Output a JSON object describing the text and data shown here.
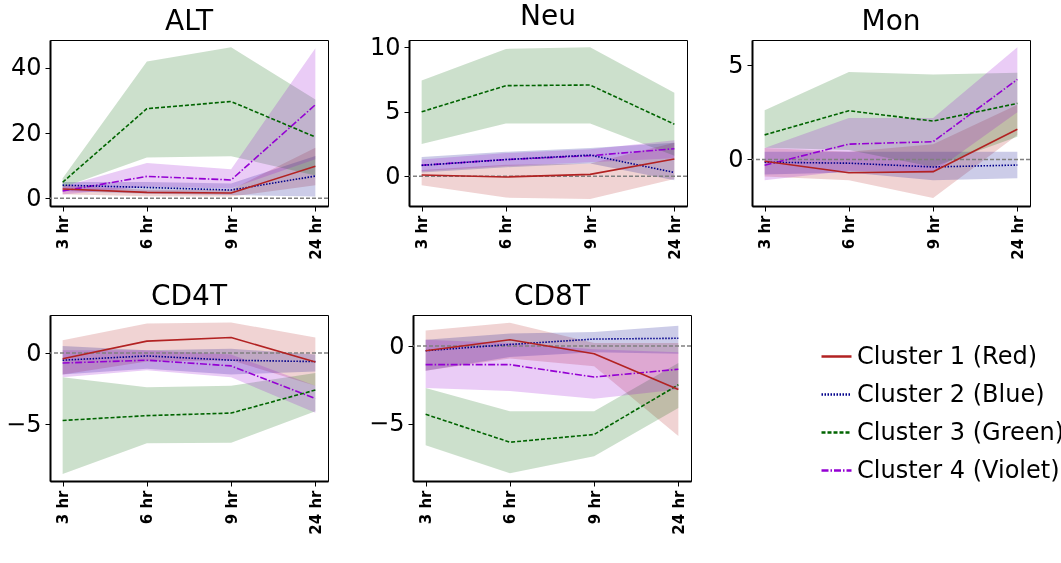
{
  "chart_data": [
    {
      "type": "line",
      "title": "ALT",
      "categories": [
        "3 hr",
        "6 hr",
        "9 hr",
        "24 hr"
      ],
      "ylim": [
        -2.4,
        48.6
      ],
      "yticks": [
        0,
        20,
        40
      ],
      "grid": false,
      "legend": "right",
      "ref_lines": [
        {
          "axis": "y",
          "value": 0,
          "color": "#808080",
          "line_style": "dashed"
        }
      ],
      "series": [
        {
          "name": "Cluster 1 (Red)",
          "color": "#b22222",
          "line_style": "solid",
          "values": [
            2.8,
            1.8,
            1.6,
            9.8
          ],
          "lower": [
            1.2,
            0.6,
            0.5,
            4.0
          ],
          "upper": [
            4.0,
            2.6,
            2.6,
            15.5
          ]
        },
        {
          "name": "Cluster 2 (Blue)",
          "color": "#00008b",
          "line_style": "dotted",
          "values": [
            4.0,
            3.3,
            2.5,
            6.8
          ],
          "lower": [
            2.2,
            1.4,
            1.0,
            0.5
          ],
          "upper": [
            5.0,
            5.0,
            4.5,
            13.0
          ]
        },
        {
          "name": "Cluster 3 (Green)",
          "color": "#006400",
          "line_style": "dashed",
          "values": [
            4.9,
            27.5,
            29.7,
            18.8
          ],
          "lower": [
            3.3,
            12.5,
            12.9,
            7.0
          ],
          "upper": [
            6.1,
            42.0,
            46.4,
            30.3
          ]
        },
        {
          "name": "Cluster 4 (Violet)",
          "color": "#9400d3",
          "line_style": "dashdot",
          "values": [
            2.2,
            6.7,
            5.6,
            28.7
          ],
          "lower": [
            1.1,
            3.5,
            3.0,
            12.0
          ],
          "upper": [
            3.5,
            10.8,
            8.9,
            46.1
          ]
        }
      ]
    },
    {
      "type": "line",
      "title": "Neu",
      "categories": [
        "3 hr",
        "6 hr",
        "9 hr",
        "24 hr"
      ],
      "ylim": [
        -2.3,
        10.57
      ],
      "yticks": [
        0,
        5,
        10
      ],
      "grid": false,
      "legend": "right",
      "ref_lines": [
        {
          "axis": "y",
          "value": 0,
          "color": "#808080",
          "line_style": "dashed"
        }
      ],
      "series": [
        {
          "name": "Cluster 1 (Red)",
          "color": "#b22222",
          "line_style": "solid",
          "values": [
            0.1,
            -0.05,
            0.15,
            1.35
          ],
          "lower": [
            -0.7,
            -1.65,
            -1.75,
            -0.2
          ],
          "upper": [
            0.5,
            0.9,
            1.0,
            2.6
          ]
        },
        {
          "name": "Cluster 2 (Blue)",
          "color": "#00008b",
          "line_style": "dotted",
          "values": [
            0.85,
            1.3,
            1.65,
            0.3
          ],
          "lower": [
            0.3,
            0.7,
            1.0,
            -0.3
          ],
          "upper": [
            1.5,
            1.9,
            2.2,
            2.6
          ]
        },
        {
          "name": "Cluster 3 (Green)",
          "color": "#006400",
          "line_style": "dashed",
          "values": [
            5.0,
            7.03,
            7.08,
            4.04
          ],
          "lower": [
            2.5,
            4.1,
            4.1,
            1.6
          ],
          "upper": [
            7.43,
            9.88,
            10.0,
            6.48
          ]
        },
        {
          "name": "Cluster 4 (Violet)",
          "color": "#9400d3",
          "line_style": "dashdot",
          "values": [
            0.86,
            1.3,
            1.6,
            2.14
          ],
          "lower": [
            0.4,
            0.8,
            1.1,
            1.4
          ],
          "upper": [
            1.3,
            1.8,
            2.1,
            2.8
          ]
        }
      ]
    },
    {
      "type": "line",
      "title": "Mon",
      "categories": [
        "3 hr",
        "6 hr",
        "9 hr",
        "24 hr"
      ],
      "ylim": [
        -2.47,
        6.33
      ],
      "yticks": [
        0,
        5
      ],
      "grid": false,
      "legend": "right",
      "ref_lines": [
        {
          "axis": "y",
          "value": 0,
          "color": "#808080",
          "line_style": "dashed"
        }
      ],
      "series": [
        {
          "name": "Cluster 1 (Red)",
          "color": "#b22222",
          "line_style": "solid",
          "values": [
            -0.1,
            -0.71,
            -0.65,
            1.6
          ],
          "lower": [
            -0.9,
            -1.1,
            -2.05,
            1.3
          ],
          "upper": [
            0.6,
            0.4,
            0.8,
            2.9
          ]
        },
        {
          "name": "Cluster 2 (Blue)",
          "color": "#00008b",
          "line_style": "dotted",
          "values": [
            -0.15,
            -0.2,
            -0.4,
            -0.3
          ],
          "lower": [
            -0.8,
            -0.7,
            -1.1,
            -1.0
          ],
          "upper": [
            0.4,
            0.4,
            0.4,
            0.4
          ]
        },
        {
          "name": "Cluster 3 (Green)",
          "color": "#006400",
          "line_style": "dashed",
          "values": [
            1.3,
            2.58,
            2.03,
            2.97
          ],
          "lower": [
            0.62,
            0.5,
            -0.4,
            1.2
          ],
          "upper": [
            2.6,
            4.64,
            4.5,
            4.6
          ]
        },
        {
          "name": "Cluster 4 (Violet)",
          "color": "#9400d3",
          "line_style": "dashdot",
          "values": [
            -0.31,
            0.81,
            0.94,
            4.24
          ],
          "lower": [
            -1.1,
            -0.6,
            -0.7,
            2.5
          ],
          "upper": [
            0.6,
            2.2,
            2.2,
            5.94
          ]
        }
      ]
    },
    {
      "type": "line",
      "title": "CD4T",
      "categories": [
        "3 hr",
        "6 hr",
        "9 hr",
        "24 hr"
      ],
      "ylim": [
        -9.0,
        2.68
      ],
      "yticks": [
        {
          "value": -5,
          "label": "−5"
        },
        0
      ],
      "grid": false,
      "legend": "right",
      "ref_lines": [
        {
          "axis": "y",
          "value": 0,
          "color": "#808080",
          "line_style": "dashed"
        }
      ],
      "series": [
        {
          "name": "Cluster 1 (Red)",
          "color": "#b22222",
          "line_style": "solid",
          "values": [
            -0.4,
            0.84,
            1.1,
            -0.63
          ],
          "lower": [
            -1.5,
            -0.6,
            -0.5,
            -2.3
          ],
          "upper": [
            0.9,
            2.08,
            2.15,
            1.1
          ]
        },
        {
          "name": "Cluster 2 (Blue)",
          "color": "#00008b",
          "line_style": "dotted",
          "values": [
            -0.5,
            -0.2,
            -0.5,
            -0.6
          ],
          "lower": [
            -1.5,
            -1.1,
            -1.5,
            -1.3
          ],
          "upper": [
            0.5,
            0.2,
            0.3,
            -0.1
          ]
        },
        {
          "name": "Cluster 3 (Green)",
          "color": "#006400",
          "line_style": "dashed",
          "values": [
            -4.74,
            -4.4,
            -4.22,
            -2.6
          ],
          "lower": [
            -8.5,
            -6.35,
            -6.3,
            -4.1
          ],
          "upper": [
            -1.7,
            -2.4,
            -2.3,
            -1.4
          ]
        },
        {
          "name": "Cluster 4 (Violet)",
          "color": "#9400d3",
          "line_style": "dashdot",
          "values": [
            -0.7,
            -0.5,
            -0.9,
            -3.2
          ],
          "lower": [
            -1.7,
            -1.2,
            -1.7,
            -4.2
          ],
          "upper": [
            0.2,
            0.2,
            -0.1,
            -2.3
          ]
        }
      ]
    },
    {
      "type": "line",
      "title": "CD8T",
      "categories": [
        "3 hr",
        "6 hr",
        "9 hr",
        "24 hr"
      ],
      "ylim": [
        -8.7,
        2.0
      ],
      "yticks": [
        {
          "value": -5,
          "label": "−5"
        },
        0
      ],
      "grid": false,
      "legend": "right",
      "ref_lines": [
        {
          "axis": "y",
          "value": 0,
          "color": "#808080",
          "line_style": "dashed"
        }
      ],
      "series": [
        {
          "name": "Cluster 1 (Red)",
          "color": "#b22222",
          "line_style": "solid",
          "values": [
            -0.3,
            0.4,
            -0.5,
            -2.8
          ],
          "lower": [
            -1.6,
            -0.8,
            -1.3,
            -5.8
          ],
          "upper": [
            1.0,
            1.5,
            0.2,
            0.2
          ]
        },
        {
          "name": "Cluster 2 (Blue)",
          "color": "#00008b",
          "line_style": "dotted",
          "values": [
            -0.3,
            0.1,
            0.45,
            0.5
          ],
          "lower": [
            -1.6,
            -0.7,
            -0.4,
            -0.5
          ],
          "upper": [
            0.4,
            0.8,
            0.9,
            1.3
          ]
        },
        {
          "name": "Cluster 3 (Green)",
          "color": "#006400",
          "line_style": "dashed",
          "values": [
            -4.4,
            -6.2,
            -5.7,
            -2.5
          ],
          "lower": [
            -6.4,
            -8.2,
            -7.1,
            -4.0
          ],
          "upper": [
            -2.7,
            -4.2,
            -4.2,
            -1.1
          ]
        },
        {
          "name": "Cluster 4 (Violet)",
          "color": "#9400d3",
          "line_style": "dashdot",
          "values": [
            -1.2,
            -1.2,
            -2.0,
            -1.5
          ],
          "lower": [
            -2.7,
            -2.9,
            -3.4,
            -2.8
          ],
          "upper": [
            0.4,
            0.2,
            -0.2,
            -0.4
          ]
        }
      ]
    }
  ]
}
